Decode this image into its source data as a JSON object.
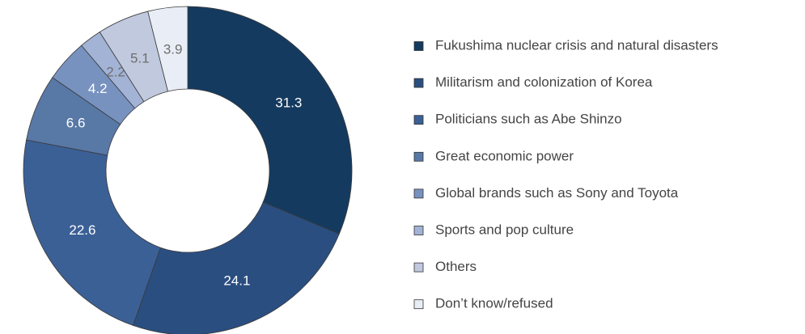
{
  "chart_data": {
    "type": "donut",
    "categories": [
      "Fukushima nuclear crisis and natural disasters",
      "Militarism and colonization of Korea",
      "Politicians such as Abe Shinzo",
      "Great economic power",
      "Global brands such as Sony and Toyota",
      "Sports and pop culture",
      "Others",
      "Don’t know/refused"
    ],
    "values": [
      31.3,
      24.1,
      22.6,
      6.6,
      4.2,
      2.2,
      5.1,
      3.9
    ],
    "colors": [
      "#153a5f",
      "#2a4e80",
      "#3b6096",
      "#5878a6",
      "#7892c0",
      "#a2b3d5",
      "#c0c9de",
      "#e9eef6"
    ],
    "legend": "right"
  }
}
